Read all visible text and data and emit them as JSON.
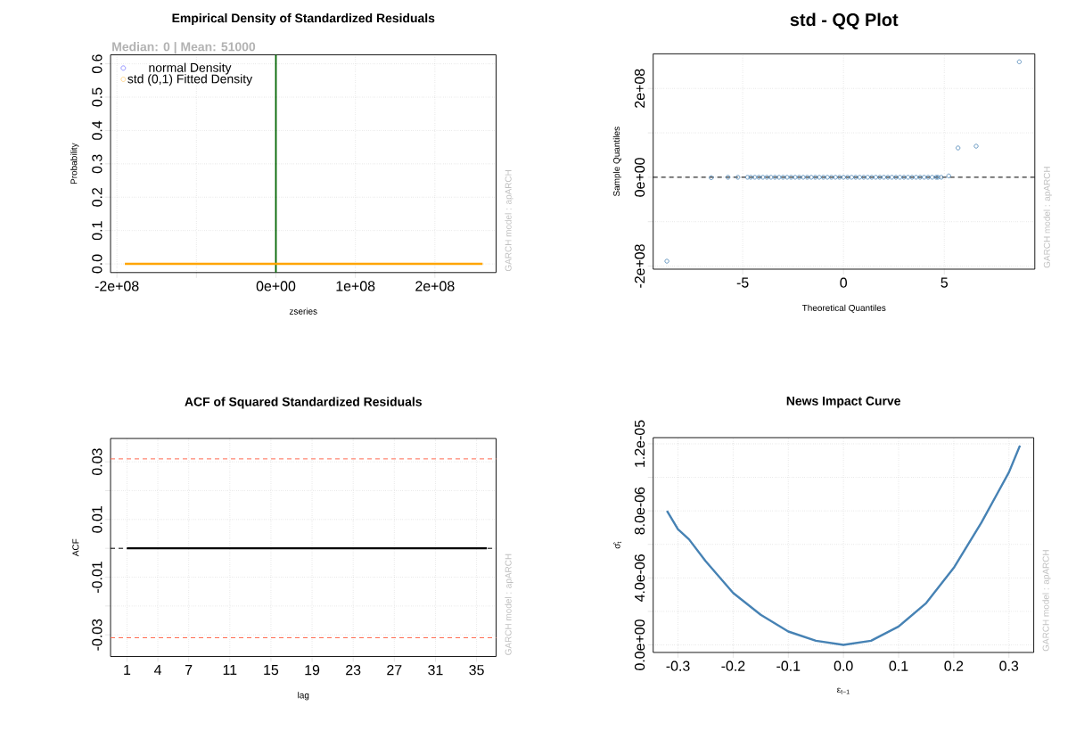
{
  "chart_data": [
    {
      "type": "line",
      "title": "Empirical Density of Standardized Residuals",
      "subtitle": "Median:  0 | Mean:  51000",
      "xlabel": "zseries",
      "ylabel": "Probability",
      "xlim": [
        -208000000,
        277000000
      ],
      "ylim": [
        -0.026,
        0.627
      ],
      "xticks": [
        {
          "value": -200000000,
          "label": "-2e+08"
        },
        {
          "value": -100000000,
          "label": null
        },
        {
          "value": 0,
          "label": "0e+00"
        },
        {
          "value": 100000000,
          "label": "1e+08"
        },
        {
          "value": 200000000,
          "label": "2e+08"
        }
      ],
      "yticks": [
        {
          "value": 0,
          "label": "0.0"
        },
        0.1,
        0.2,
        0.3,
        0.4,
        0.5,
        0.6
      ],
      "x": [
        -190000000,
        260000000
      ],
      "series": [
        {
          "name": "normal Density",
          "color": "#0000ff",
          "values": [
            null,
            null
          ]
        },
        {
          "name": "std (0,1) Fitted Density",
          "color": "#ffa500",
          "values": [
            0,
            0
          ]
        }
      ],
      "ref_lines": [
        {
          "axis": "x",
          "value": 0,
          "color": "#006400",
          "line_style": "solid"
        }
      ],
      "annotations": [
        "GARCH model : apARCH"
      ],
      "grid": true,
      "legend": "top left"
    },
    {
      "type": "scatter",
      "title": "std - QQ Plot",
      "xlabel": "Theoretical Quantiles",
      "ylabel": "Sample Quantiles",
      "xlim": [
        -9.44,
        9.49
      ],
      "ylim": [
        -207000000,
        278000000
      ],
      "xticks": [
        -5,
        0,
        5
      ],
      "yticks": [
        {
          "value": -200000000,
          "label": "-2e+08"
        },
        {
          "value": -100000000,
          "label": null
        },
        {
          "value": 0,
          "label": "0e+00"
        },
        {
          "value": 100000000,
          "label": null
        },
        {
          "value": 200000000,
          "label": "2e+08"
        }
      ],
      "series": [
        {
          "color": "#4682b4",
          "x": [
            -8.76,
            -6.56,
            -5.73,
            -5.24,
            -4.76,
            -4.6,
            -4.4,
            -4.2,
            -4.0,
            -3.8,
            -3.6,
            -3.4,
            -3.2,
            -3.0,
            -2.8,
            -2.6,
            -2.4,
            -2.2,
            -2.0,
            -1.8,
            -1.6,
            -1.4,
            -1.2,
            -1.0,
            -0.8,
            -0.6,
            -0.4,
            -0.2,
            0.0,
            0.2,
            0.4,
            0.6,
            0.8,
            1.0,
            1.2,
            1.4,
            1.6,
            1.8,
            2.0,
            2.2,
            2.4,
            2.6,
            2.8,
            3.0,
            3.2,
            3.4,
            3.6,
            3.8,
            4.0,
            4.2,
            4.4,
            4.6,
            4.68,
            4.85,
            5.22,
            5.68,
            6.58,
            8.72
          ],
          "values": [
            -189000000,
            -1000000,
            0,
            0,
            0,
            0,
            0,
            0,
            0,
            0,
            0,
            0,
            0,
            0,
            0,
            0,
            0,
            0,
            0,
            0,
            0,
            0,
            0,
            0,
            0,
            0,
            0,
            0,
            0,
            0,
            0,
            0,
            0,
            0,
            0,
            0,
            0,
            0,
            0,
            0,
            0,
            0,
            0,
            0,
            0,
            0,
            0,
            0,
            0,
            0,
            0,
            0,
            0,
            0,
            3000000,
            66000000,
            70000000,
            260000000
          ]
        }
      ],
      "ref_lines": [
        {
          "axis": "y",
          "value": 0,
          "color": "#000000",
          "line_style": "dashed"
        }
      ],
      "annotations": [
        "GARCH model : apARCH"
      ],
      "grid": true,
      "marker": "circle"
    },
    {
      "type": "line",
      "title": "ACF of Squared Standardized Residuals",
      "xlabel": "lag",
      "ylabel": "ACF",
      "xlim": [
        -0.6,
        36.9
      ],
      "ylim": [
        -0.0375,
        0.0381
      ],
      "xticks": [
        1,
        4,
        7,
        11,
        15,
        19,
        23,
        27,
        31,
        35
      ],
      "yticks": [
        -0.03,
        {
          "value": -0.02,
          "label": null
        },
        -0.01,
        {
          "value": 0,
          "label": null
        },
        0.01,
        {
          "value": 0.02,
          "label": null
        },
        0.03
      ],
      "series": [
        {
          "color": "#000000",
          "x": [
            1,
            2,
            3,
            4,
            5,
            6,
            7,
            8,
            9,
            10,
            11,
            12,
            13,
            14,
            15,
            16,
            17,
            18,
            19,
            20,
            21,
            22,
            23,
            24,
            25,
            26,
            27,
            28,
            29,
            30,
            31,
            32,
            33,
            34,
            35,
            36
          ],
          "values": [
            0,
            0,
            0,
            0,
            0,
            0,
            0,
            0,
            0,
            0,
            0,
            0,
            0,
            0,
            0,
            0,
            0,
            0,
            0,
            0,
            0,
            0,
            0,
            0,
            0,
            0,
            0,
            0,
            0,
            0,
            0,
            0,
            0,
            0,
            0,
            0
          ]
        }
      ],
      "ref_lines": [
        {
          "axis": "y",
          "value": 0.031,
          "color": "#ff6a50",
          "line_style": "dashed"
        },
        {
          "axis": "y",
          "value": -0.031,
          "color": "#ff6a50",
          "line_style": "dashed"
        },
        {
          "axis": "y",
          "value": 0,
          "color": "#000000",
          "line_style": "dashed"
        }
      ],
      "annotations": [
        "GARCH model : apARCH"
      ],
      "grid": true
    },
    {
      "type": "line",
      "title": "News Impact Curve",
      "xlabel": "ε$_{t−1}$",
      "ylabel": "σ̂$_{t}$",
      "xlim": [
        -0.345,
        0.345
      ],
      "ylim": [
        -4.5e-07,
        1.237e-05
      ],
      "xticks": [
        -0.3,
        -0.2,
        -0.1,
        {
          "value": 0,
          "label": "0.0"
        },
        0.1,
        0.2,
        0.3
      ],
      "yticks": [
        {
          "value": 0,
          "label": "0.0e+00"
        },
        {
          "value": 2e-06,
          "label": null
        },
        {
          "value": 4e-06,
          "label": "4.0e-06"
        },
        {
          "value": 6e-06,
          "label": null
        },
        {
          "value": 8e-06,
          "label": "8.0e-06"
        },
        {
          "value": 1e-05,
          "label": null
        },
        {
          "value": 1.2e-05,
          "label": "1.2e-05"
        }
      ],
      "series": [
        {
          "color": "#4682b4",
          "x": [
            -0.32,
            -0.3,
            -0.28,
            -0.25,
            -0.2,
            -0.15,
            -0.1,
            -0.05,
            0,
            0.05,
            0.1,
            0.15,
            0.2,
            0.25,
            0.28,
            0.3,
            0.32
          ],
          "values": [
            8e-06,
            6.9e-06,
            6.3e-06,
            5e-06,
            3.1e-06,
            1.8e-06,
            8e-07,
            2.5e-07,
            0,
            2.5e-07,
            1.1e-06,
            2.5e-06,
            4.6e-06,
            7.3e-06,
            9.1e-06,
            1.03e-05,
            1.19e-05
          ]
        }
      ],
      "annotations": [
        "GARCH model : apARCH"
      ],
      "grid": true
    }
  ]
}
